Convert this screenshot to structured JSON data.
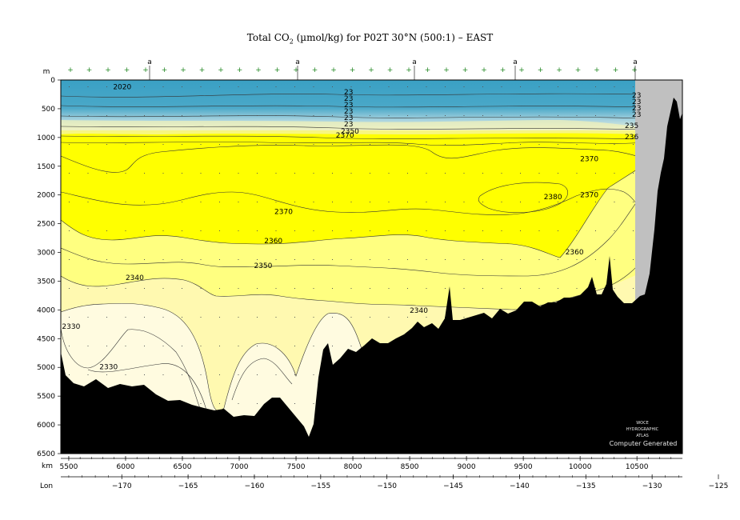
{
  "title": {
    "prefix": "Total CO",
    "sub": "2",
    "suffix": " (µmol/kg) for P02T 30°N (500:1) – EAST"
  },
  "axes": {
    "depth_unit": "m",
    "km_label": "km",
    "lon_label": "Lon"
  },
  "credit": {
    "lines": [
      "WOCE",
      "HYDROGRAPHIC",
      "ATLAS"
    ],
    "generated": "Computer Generated"
  },
  "colors": {
    "band_below_2330": "#fffbe0",
    "band_2330_2340": "#fff9b0",
    "band_2340_2360": "#ffff80",
    "band_2360_plus": "#ffff00",
    "surface_low": "#3aa0c4",
    "surface_mid": "#8cc6d8",
    "bathymetry": "#000000",
    "no_data": "#c0c0c0"
  },
  "chart_data": {
    "type": "heatmap",
    "title": "Total CO2 (µmol/kg) for P02T 30°N (500:1) – EAST",
    "y_axis": {
      "label": "m",
      "range": [
        0,
        6500
      ],
      "ticks": [
        0,
        500,
        1000,
        1500,
        2000,
        2500,
        3000,
        3500,
        4000,
        4500,
        5000,
        5500,
        6000,
        6500
      ],
      "direction": "down"
    },
    "x_axis_km": {
      "label": "km",
      "range": [
        5430,
        10900
      ],
      "ticks": [
        5500,
        6000,
        6500,
        7000,
        7500,
        8000,
        8500,
        9000,
        9500,
        10000,
        10500
      ]
    },
    "x_axis_lon": {
      "label": "Lon",
      "ticks": [
        -170,
        -165,
        -160,
        -155,
        -150,
        -145,
        -140,
        -135,
        -130,
        -125
      ]
    },
    "station_markers_top": [
      "a",
      "a",
      "a",
      "a",
      "a"
    ],
    "contour_labels": [
      {
        "value": "2020",
        "km": 5890,
        "depth": 120
      },
      {
        "value": "2370",
        "km": 7850,
        "depth": 960
      },
      {
        "value": "2370",
        "km": 10000,
        "depth": 1370
      },
      {
        "value": "2380",
        "km": 9680,
        "depth": 2030
      },
      {
        "value": "2370",
        "km": 10000,
        "depth": 2000
      },
      {
        "value": "2370",
        "km": 7310,
        "depth": 2290
      },
      {
        "value": "2360",
        "km": 7220,
        "depth": 2800
      },
      {
        "value": "2360",
        "km": 9870,
        "depth": 2990
      },
      {
        "value": "2350",
        "km": 7130,
        "depth": 3230
      },
      {
        "value": "2340",
        "km": 6000,
        "depth": 3440
      },
      {
        "value": "2340",
        "km": 8500,
        "depth": 4010
      },
      {
        "value": "2330",
        "km": 5440,
        "depth": 4290
      },
      {
        "value": "2330",
        "km": 5770,
        "depth": 4990
      }
    ],
    "legend": "none",
    "grid": false
  }
}
